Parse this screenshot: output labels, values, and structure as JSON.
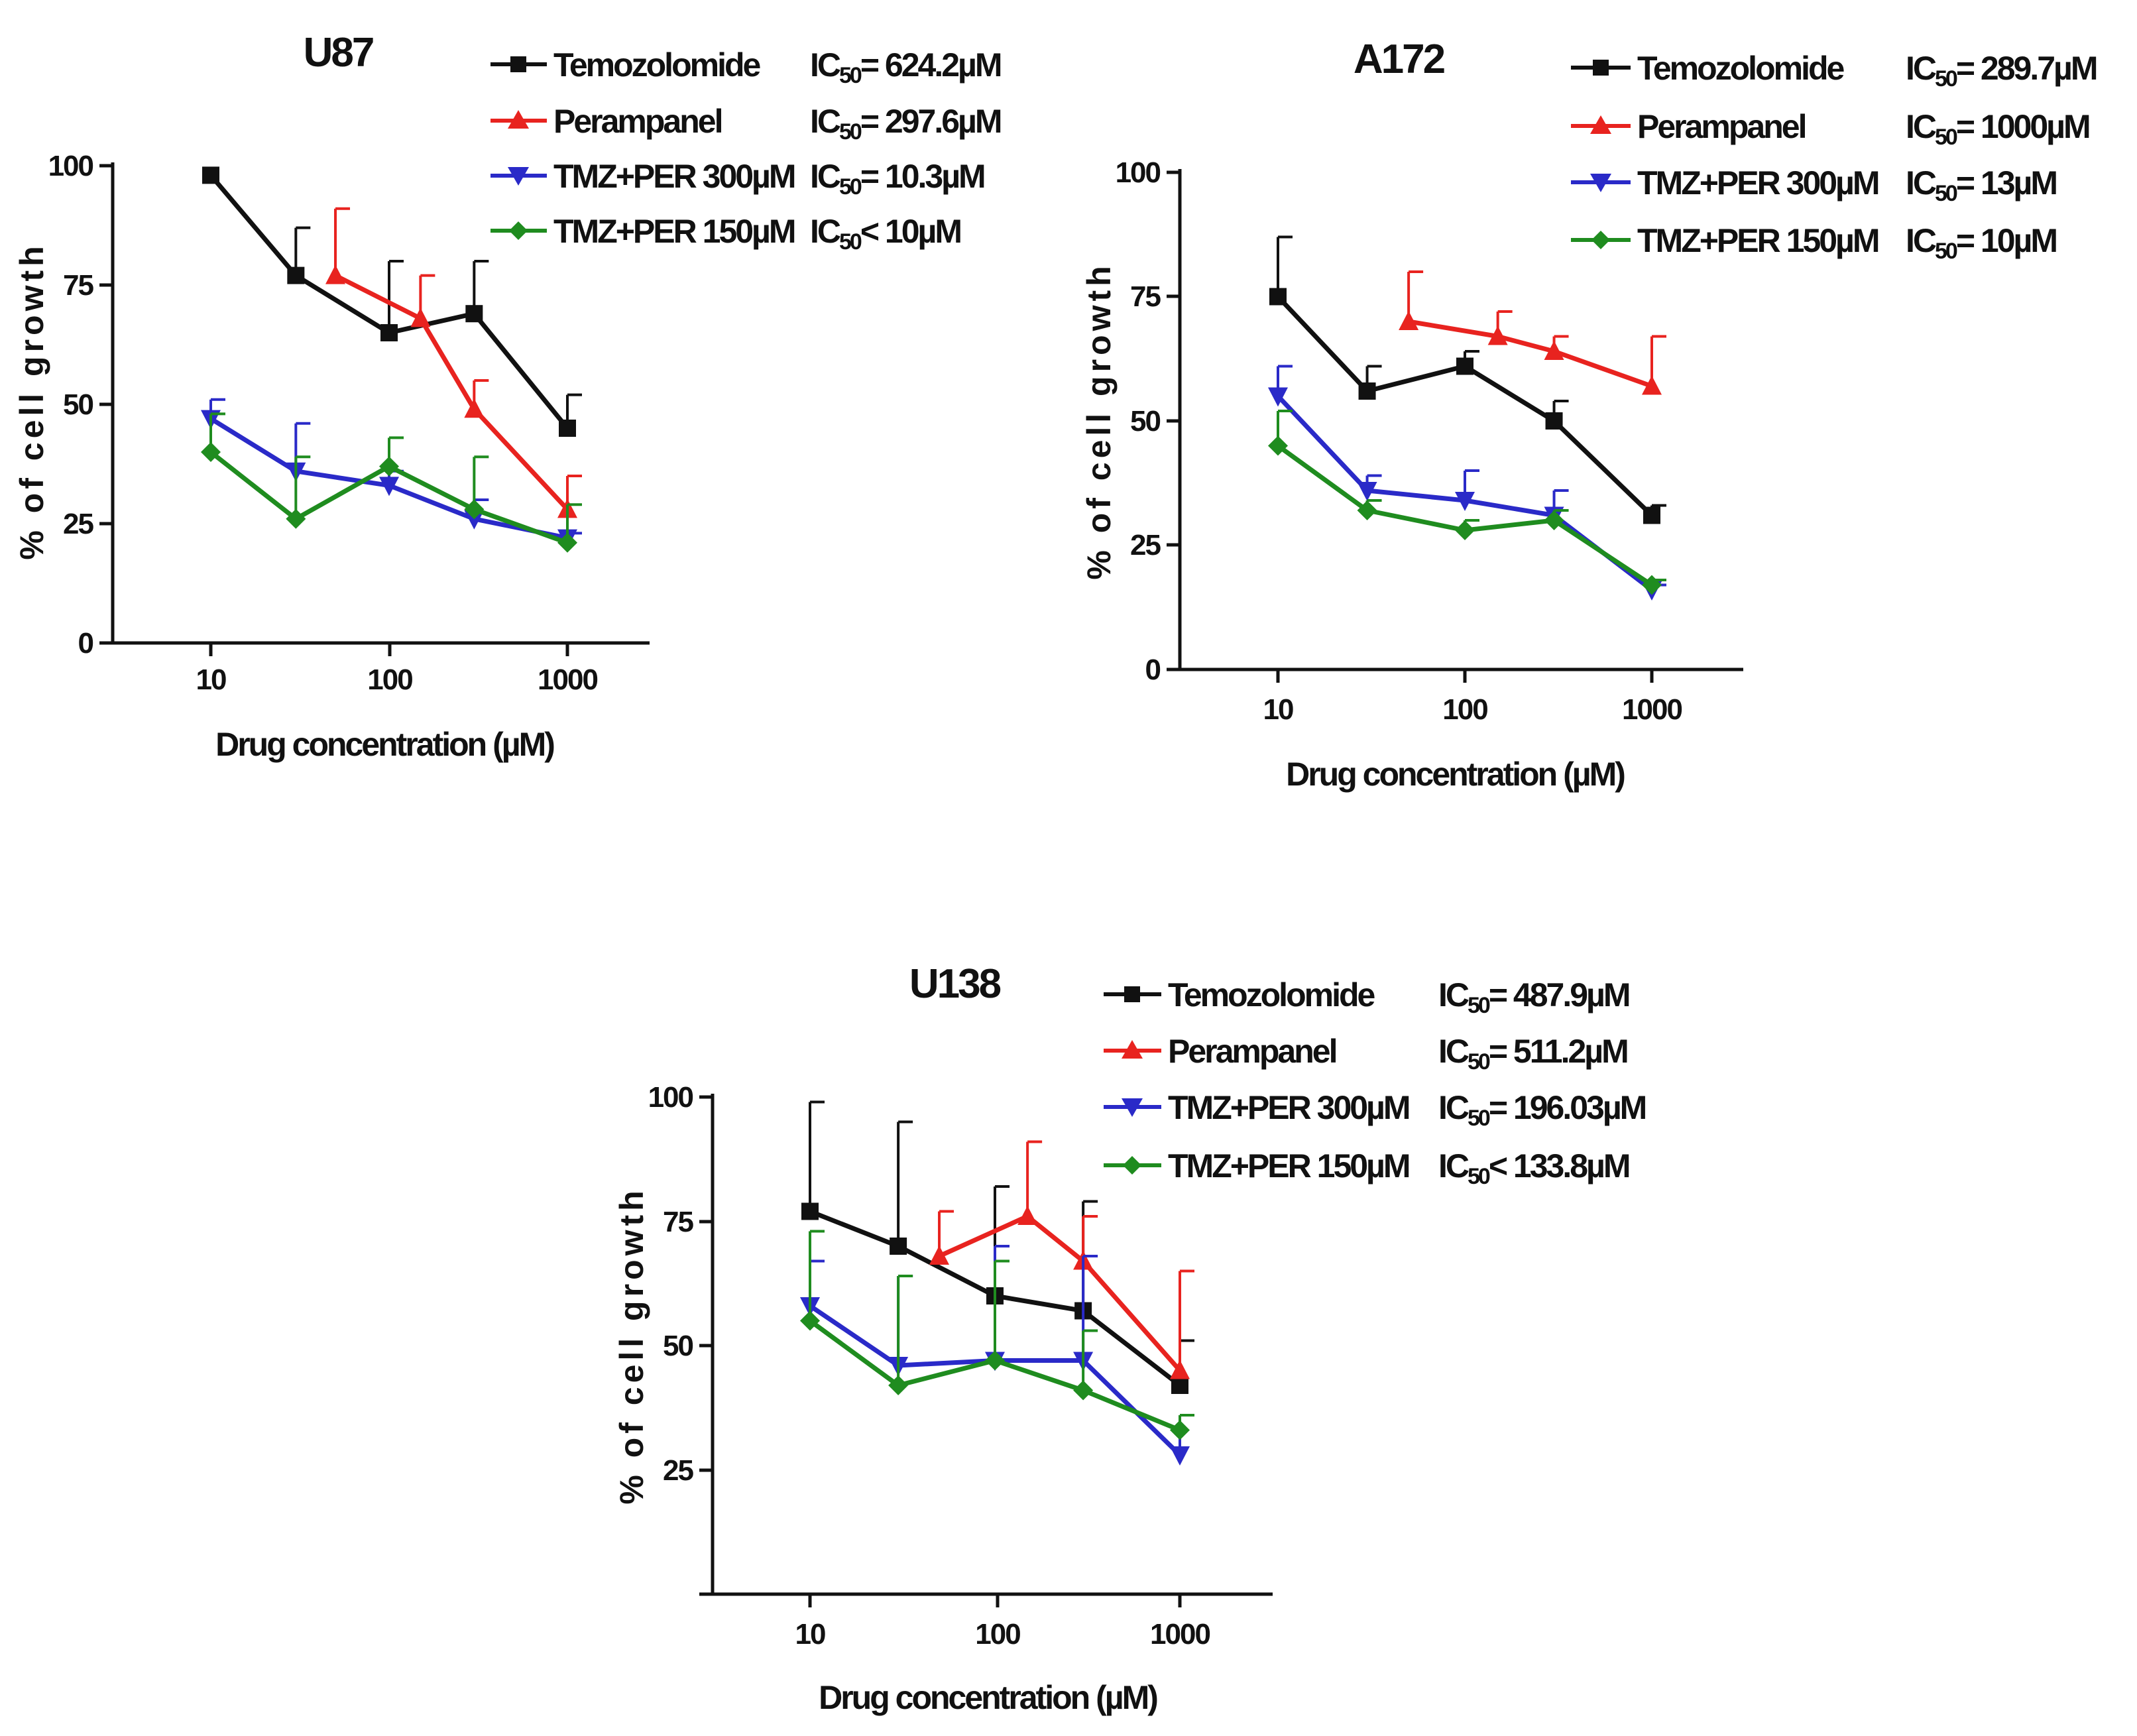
{
  "chart_data": [
    {
      "type": "line",
      "title": "U87",
      "xlabel": "Drug concentration (µM)",
      "ylabel": "% of cell growth",
      "xscale": "log",
      "xlim": [
        4,
        4000
      ],
      "ylim": [
        0,
        100
      ],
      "xticks": [
        10,
        100,
        1000
      ],
      "xtick_labels": [
        "10",
        "100",
        "1000"
      ],
      "yticks": [
        0,
        25,
        50,
        75,
        100
      ],
      "ytick_labels": [
        "0",
        "25",
        "50",
        "75",
        "100"
      ],
      "legend": "top-right",
      "series": [
        {
          "name": "Temozolomide",
          "ic_prefix": "IC",
          "ic_sub": "50",
          "ic_rest": "= 624.2µM",
          "color": "#111111",
          "marker": "square",
          "x": [
            10,
            30,
            100,
            300,
            1000
          ],
          "y": [
            98,
            77,
            65,
            69,
            45
          ],
          "err": [
            0,
            10,
            15,
            11,
            7
          ]
        },
        {
          "name": "Perampanel",
          "ic_prefix": "IC",
          "ic_sub": "50",
          "ic_rest": "= 297.6µM",
          "color": "#e8231f",
          "marker": "triangle-up",
          "x": [
            50,
            150,
            300,
            1000
          ],
          "y": [
            77,
            68,
            49,
            28
          ],
          "err": [
            14,
            9,
            6,
            7
          ]
        },
        {
          "name": "TMZ+PER 300µM",
          "ic_prefix": "IC",
          "ic_sub": "50",
          "ic_rest": "= 10.3µM",
          "color": "#2a2ac8",
          "marker": "triangle-down",
          "x": [
            10,
            30,
            100,
            300,
            1000
          ],
          "y": [
            47,
            36,
            33,
            26,
            22
          ],
          "err": [
            4,
            10,
            3,
            4,
            1
          ]
        },
        {
          "name": "TMZ+PER 150µM",
          "ic_prefix": "IC",
          "ic_sub": "50",
          "ic_rest": "< 10µM",
          "color": "#1f8c1f",
          "marker": "diamond",
          "x": [
            10,
            30,
            100,
            300,
            1000
          ],
          "y": [
            40,
            26,
            37,
            28,
            21
          ],
          "err": [
            8,
            13,
            6,
            11,
            8
          ]
        }
      ]
    },
    {
      "type": "line",
      "title": "A172",
      "xlabel": "Drug concentration (µM)",
      "ylabel": "% of cell growth",
      "xscale": "log",
      "xlim": [
        4,
        4000
      ],
      "ylim": [
        0,
        100
      ],
      "xticks": [
        10,
        100,
        1000
      ],
      "xtick_labels": [
        "10",
        "100",
        "1000"
      ],
      "yticks": [
        0,
        25,
        50,
        75,
        100
      ],
      "ytick_labels": [
        "0",
        "25",
        "50",
        "75",
        "100"
      ],
      "legend": "top-right",
      "series": [
        {
          "name": "Temozolomide",
          "ic_prefix": "IC",
          "ic_sub": "50",
          "ic_rest": "= 289.7µM",
          "color": "#111111",
          "marker": "square",
          "x": [
            10,
            30,
            100,
            300,
            1000
          ],
          "y": [
            75,
            56,
            61,
            50,
            31
          ],
          "err": [
            12,
            5,
            3,
            4,
            2
          ]
        },
        {
          "name": "Perampanel",
          "ic_prefix": "IC",
          "ic_sub": "50",
          "ic_rest": "= 1000µM",
          "color": "#e8231f",
          "marker": "triangle-up",
          "x": [
            50,
            150,
            300,
            1000
          ],
          "y": [
            70,
            67,
            64,
            57
          ],
          "err": [
            10,
            5,
            3,
            10
          ]
        },
        {
          "name": "TMZ+PER 300µM",
          "ic_prefix": "IC",
          "ic_sub": "50",
          "ic_rest": "= 13µM",
          "color": "#2a2ac8",
          "marker": "triangle-down",
          "x": [
            10,
            30,
            100,
            300,
            1000
          ],
          "y": [
            55,
            36,
            34,
            31,
            16
          ],
          "err": [
            6,
            3,
            6,
            5,
            1
          ]
        },
        {
          "name": "TMZ+PER 150µM",
          "ic_prefix": "IC",
          "ic_sub": "50",
          "ic_rest": "= 10µM",
          "color": "#1f8c1f",
          "marker": "diamond",
          "x": [
            10,
            30,
            100,
            300,
            1000
          ],
          "y": [
            45,
            32,
            28,
            30,
            17
          ],
          "err": [
            7,
            2,
            2,
            2,
            1
          ]
        }
      ]
    },
    {
      "type": "line",
      "title": "U138",
      "xlabel": "Drug concentration (µM)",
      "ylabel": "% of cell growth",
      "xscale": "log",
      "xlim": [
        4,
        4000
      ],
      "ylim": [
        0,
        100
      ],
      "xticks": [
        10,
        100,
        1000
      ],
      "xtick_labels": [
        "10",
        "100",
        "1000"
      ],
      "yticks": [
        25,
        50,
        75,
        100
      ],
      "ytick_labels": [
        "25",
        "50",
        "75",
        "100"
      ],
      "legend": "top-right",
      "series": [
        {
          "name": "Temozolomide",
          "ic_prefix": "IC",
          "ic_sub": "50",
          "ic_rest": "= 487.9µM",
          "color": "#111111",
          "marker": "square",
          "x": [
            10,
            30,
            100,
            300,
            1000
          ],
          "y": [
            77,
            70,
            60,
            57,
            42
          ],
          "err": [
            22,
            25,
            22,
            22,
            9
          ]
        },
        {
          "name": "Perampanel",
          "ic_prefix": "IC",
          "ic_sub": "50",
          "ic_rest": "= 511.2µM",
          "color": "#e8231f",
          "marker": "triangle-up",
          "x": [
            50,
            150,
            300,
            1000
          ],
          "y": [
            68,
            76,
            67,
            45
          ],
          "err": [
            9,
            15,
            9,
            20
          ]
        },
        {
          "name": "TMZ+PER 300µM",
          "ic_prefix": "IC",
          "ic_sub": "50",
          "ic_rest": "= 196.03µM",
          "color": "#2a2ac8",
          "marker": "triangle-down",
          "x": [
            10,
            30,
            100,
            300,
            1000
          ],
          "y": [
            58,
            46,
            47,
            47,
            28
          ],
          "err": [
            9,
            18,
            23,
            21,
            8
          ]
        },
        {
          "name": "TMZ+PER 150µM",
          "ic_prefix": "IC",
          "ic_sub": "50",
          "ic_rest": "< 133.8µM",
          "color": "#1f8c1f",
          "marker": "diamond",
          "x": [
            10,
            30,
            100,
            300,
            1000
          ],
          "y": [
            55,
            42,
            47,
            41,
            33
          ],
          "err": [
            18,
            22,
            20,
            12,
            3
          ]
        }
      ]
    }
  ]
}
